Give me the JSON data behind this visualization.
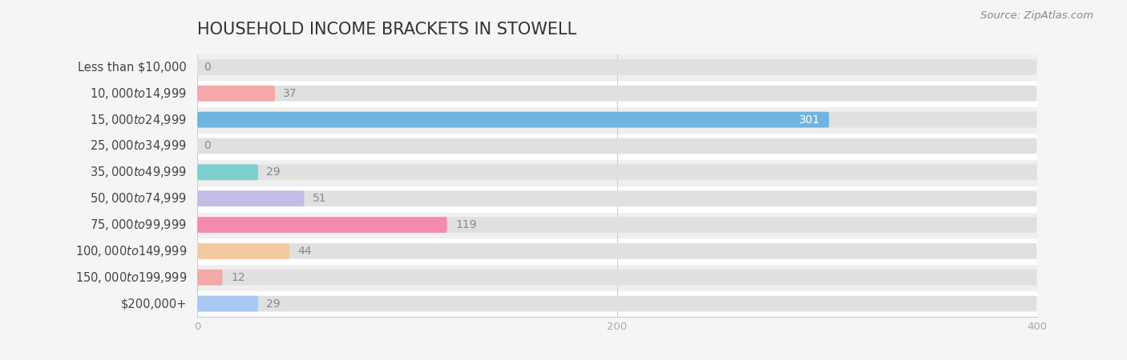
{
  "title": "HOUSEHOLD INCOME BRACKETS IN STOWELL",
  "source": "Source: ZipAtlas.com",
  "categories": [
    "Less than $10,000",
    "$10,000 to $14,999",
    "$15,000 to $24,999",
    "$25,000 to $34,999",
    "$35,000 to $49,999",
    "$50,000 to $74,999",
    "$75,000 to $99,999",
    "$100,000 to $149,999",
    "$150,000 to $199,999",
    "$200,000+"
  ],
  "values": [
    0,
    37,
    301,
    0,
    29,
    51,
    119,
    44,
    12,
    29
  ],
  "bar_colors": [
    "#f5c9a0",
    "#f5a8a8",
    "#6eb4e0",
    "#c9aee0",
    "#7ecfcf",
    "#c5bce8",
    "#f589b0",
    "#f5c9a0",
    "#f5a8a8",
    "#a8c8f0"
  ],
  "xlim": [
    0,
    400
  ],
  "xticks": [
    0,
    200,
    400
  ],
  "background_color": "#f5f5f5",
  "row_colors": [
    "#ffffff",
    "#efefef"
  ],
  "bar_bg_color": "#e0e0e0",
  "title_fontsize": 15,
  "label_fontsize": 10.5,
  "value_fontsize": 10,
  "source_fontsize": 9.5,
  "value_label_color_inside": "#ffffff",
  "value_label_color_outside": "#888888"
}
